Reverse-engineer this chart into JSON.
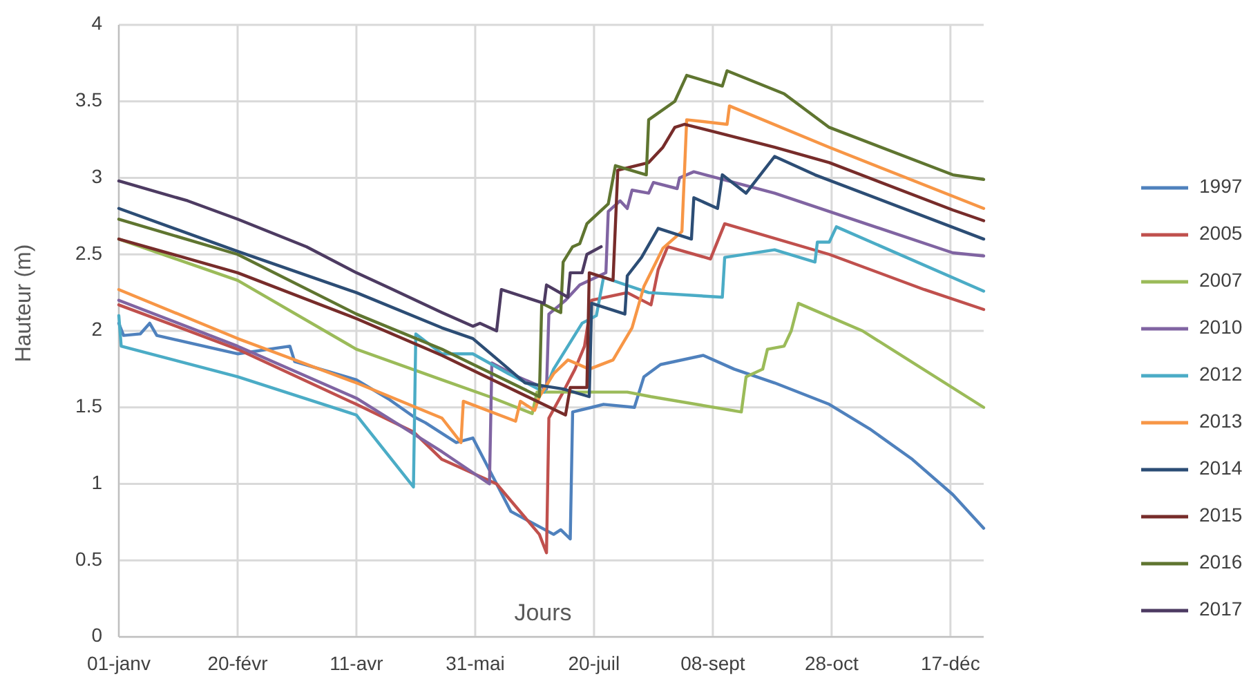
{
  "chart_data": {
    "type": "line",
    "xlabel": "Jours",
    "ylabel": "Hauteur  (m)",
    "xlim": [
      "--01-01",
      "--12-31"
    ],
    "ylim": [
      0,
      4
    ],
    "xticks": [
      {
        "value": "--01-01",
        "label": "01-janv"
      },
      {
        "value": "--02-20",
        "label": "20-févr"
      },
      {
        "value": "--04-11",
        "label": "11-avr"
      },
      {
        "value": "--05-31",
        "label": "31-mai"
      },
      {
        "value": "--07-20",
        "label": "20-juil"
      },
      {
        "value": "--09-08",
        "label": "08-sept"
      },
      {
        "value": "--10-28",
        "label": "28-oct"
      },
      {
        "value": "--12-17",
        "label": "17-déc"
      }
    ],
    "yticks": [
      0,
      0.5,
      1,
      1.5,
      2,
      2.5,
      3,
      3.5,
      4
    ],
    "grid": true,
    "legend": "right",
    "marker": "none",
    "line_style": "solid",
    "series": [
      {
        "name": "1997",
        "color": "#4f81bd",
        "x": [
          "--01-01",
          "--01-03",
          "--01-10",
          "--01-14",
          "--01-17",
          "--02-20",
          "--03-14",
          "--03-16",
          "--04-11",
          "--04-25",
          "--05-05",
          "--05-10",
          "--05-23",
          "--05-30",
          "--06-09",
          "--06-15",
          "--07-03",
          "--07-06",
          "--07-10",
          "--07-11",
          "--07-19",
          "--07-24",
          "--08-06",
          "--08-10",
          "--08-17",
          "--09-04",
          "--09-17",
          "--10-04",
          "--10-27",
          "--11-13",
          "--12-01",
          "--12-18",
          "--12-31"
        ],
        "values": [
          2.05,
          1.97,
          1.98,
          2.05,
          1.97,
          1.85,
          1.9,
          1.8,
          1.68,
          1.55,
          1.44,
          1.4,
          1.27,
          1.3,
          1.0,
          0.82,
          0.67,
          0.7,
          0.64,
          1.47,
          1.5,
          1.52,
          1.5,
          1.7,
          1.78,
          1.84,
          1.75,
          1.66,
          1.52,
          1.36,
          1.16,
          0.93,
          0.71
        ]
      },
      {
        "name": "2005",
        "color": "#c0504d",
        "x": [
          "--01-01",
          "--02-20",
          "--04-11",
          "--05-05",
          "--05-17",
          "--06-09",
          "--06-27",
          "--06-30",
          "--07-01",
          "--07-07",
          "--07-12",
          "--07-16",
          "--07-19",
          "--08-03",
          "--08-13",
          "--08-16",
          "--08-20",
          "--09-07",
          "--09-13",
          "--10-27",
          "--12-06",
          "--12-31"
        ],
        "values": [
          2.17,
          1.88,
          1.52,
          1.34,
          1.16,
          1.0,
          0.67,
          0.55,
          1.43,
          1.6,
          1.75,
          1.9,
          2.2,
          2.25,
          2.17,
          2.4,
          2.55,
          2.47,
          2.7,
          2.5,
          2.27,
          2.14
        ]
      },
      {
        "name": "2007",
        "color": "#9bbb59",
        "x": [
          "--01-01",
          "--02-20",
          "--04-11",
          "--05-17",
          "--06-06",
          "--06-24",
          "--06-26",
          "--08-03",
          "--08-13",
          "--09-20",
          "--09-22",
          "--09-29",
          "--10-01",
          "--10-08",
          "--10-11",
          "--10-14",
          "--11-10",
          "--12-31"
        ],
        "values": [
          2.6,
          2.33,
          1.88,
          1.68,
          1.57,
          1.46,
          1.6,
          1.6,
          1.57,
          1.47,
          1.7,
          1.75,
          1.88,
          1.9,
          2.0,
          2.18,
          2.0,
          1.5
        ]
      },
      {
        "name": "2010",
        "color": "#8064a2",
        "x": [
          "--01-01",
          "--02-20",
          "--04-11",
          "--05-17",
          "--06-06",
          "--06-07",
          "--06-18",
          "--06-30",
          "--07-01",
          "--07-08",
          "--07-14",
          "--07-25",
          "--07-26",
          "--07-31",
          "--08-03",
          "--08-05",
          "--08-12",
          "--08-14",
          "--08-24",
          "--08-25",
          "--08-31",
          "--10-04",
          "--12-18",
          "--12-31"
        ],
        "values": [
          2.2,
          1.9,
          1.56,
          1.21,
          1.0,
          1.79,
          1.7,
          1.62,
          2.11,
          2.2,
          2.3,
          2.38,
          2.78,
          2.85,
          2.8,
          2.92,
          2.9,
          2.97,
          2.93,
          3.0,
          3.04,
          2.9,
          2.51,
          2.49
        ]
      },
      {
        "name": "2012",
        "color": "#4bacc6",
        "x": [
          "--01-01",
          "--01-02",
          "--02-20",
          "--04-11",
          "--05-05",
          "--05-06",
          "--05-17",
          "--05-30",
          "--06-14",
          "--06-29",
          "--07-03",
          "--07-09",
          "--07-15",
          "--07-21",
          "--07-24",
          "--08-12",
          "--09-12",
          "--09-13",
          "--10-04",
          "--10-21",
          "--10-22",
          "--10-27",
          "--10-30",
          "--12-31"
        ],
        "values": [
          2.1,
          1.9,
          1.7,
          1.45,
          0.98,
          1.98,
          1.85,
          1.85,
          1.72,
          1.6,
          1.75,
          1.9,
          2.05,
          2.1,
          2.35,
          2.25,
          2.22,
          2.48,
          2.53,
          2.45,
          2.58,
          2.58,
          2.68,
          2.26
        ]
      },
      {
        "name": "2013",
        "color": "#f79646",
        "x": [
          "--01-01",
          "--02-20",
          "--04-11",
          "--05-17",
          "--05-25",
          "--05-26",
          "--06-17",
          "--06-19",
          "--06-25",
          "--06-27",
          "--07-03",
          "--07-09",
          "--07-18",
          "--07-28",
          "--08-05",
          "--08-10",
          "--08-18",
          "--08-26",
          "--08-28",
          "--09-14",
          "--09-15",
          "--10-27",
          "--12-31"
        ],
        "values": [
          2.27,
          1.95,
          1.66,
          1.43,
          1.27,
          1.54,
          1.41,
          1.54,
          1.48,
          1.57,
          1.72,
          1.81,
          1.75,
          1.81,
          2.02,
          2.29,
          2.54,
          2.65,
          3.38,
          3.35,
          3.47,
          3.2,
          2.8
        ]
      },
      {
        "name": "2014",
        "color": "#2c4d75",
        "x": [
          "--01-01",
          "--02-20",
          "--04-11",
          "--05-17",
          "--05-30",
          "--06-21",
          "--07-07",
          "--07-18",
          "--07-19",
          "--08-02",
          "--08-03",
          "--08-09",
          "--08-16",
          "--08-30",
          "--08-31",
          "--09-10",
          "--09-12",
          "--09-22",
          "--10-04",
          "--10-21",
          "--12-31"
        ],
        "values": [
          2.8,
          2.52,
          2.25,
          2.02,
          1.95,
          1.66,
          1.62,
          1.57,
          2.18,
          2.11,
          2.36,
          2.48,
          2.67,
          2.6,
          2.87,
          2.8,
          3.02,
          2.9,
          3.14,
          3.02,
          2.6
        ]
      },
      {
        "name": "2015",
        "color": "#772c2a",
        "x": [
          "--01-01",
          "--02-20",
          "--04-11",
          "--05-17",
          "--07-08",
          "--07-10",
          "--07-17",
          "--07-18",
          "--07-28",
          "--07-30",
          "--08-12",
          "--08-18",
          "--08-23",
          "--08-27",
          "--09-09",
          "--10-04",
          "--10-27",
          "--12-18",
          "--12-31"
        ],
        "values": [
          2.6,
          2.38,
          2.08,
          1.84,
          1.45,
          1.63,
          1.63,
          2.38,
          2.33,
          3.05,
          3.1,
          3.2,
          3.33,
          3.35,
          3.3,
          3.2,
          3.1,
          2.79,
          2.72
        ]
      },
      {
        "name": "2016",
        "color": "#5f7530",
        "x": [
          "--01-01",
          "--02-20",
          "--04-11",
          "--05-17",
          "--06-27",
          "--06-28",
          "--07-06",
          "--07-07",
          "--07-11",
          "--07-14",
          "--07-17",
          "--07-26",
          "--07-29",
          "--08-11",
          "--08-12",
          "--08-23",
          "--08-28",
          "--09-12",
          "--09-14",
          "--10-08",
          "--10-27",
          "--12-18",
          "--12-31"
        ],
        "values": [
          2.73,
          2.5,
          2.11,
          1.88,
          1.57,
          2.18,
          2.12,
          2.45,
          2.55,
          2.57,
          2.7,
          2.83,
          3.08,
          3.02,
          3.38,
          3.5,
          3.67,
          3.6,
          3.7,
          3.55,
          3.33,
          3.02,
          2.99
        ]
      },
      {
        "name": "2017",
        "color": "#4d3b62",
        "x": [
          "--01-01",
          "--01-30",
          "--02-20",
          "--03-21",
          "--04-11",
          "--04-25",
          "--05-17",
          "--05-30",
          "--06-02",
          "--06-09",
          "--06-11",
          "--06-29",
          "--06-30",
          "--07-09",
          "--07-10",
          "--07-15",
          "--07-17",
          "--07-23"
        ],
        "values": [
          2.98,
          2.85,
          2.73,
          2.55,
          2.38,
          2.28,
          2.12,
          2.03,
          2.05,
          2.0,
          2.27,
          2.18,
          2.3,
          2.22,
          2.38,
          2.38,
          2.5,
          2.55
        ]
      }
    ]
  }
}
